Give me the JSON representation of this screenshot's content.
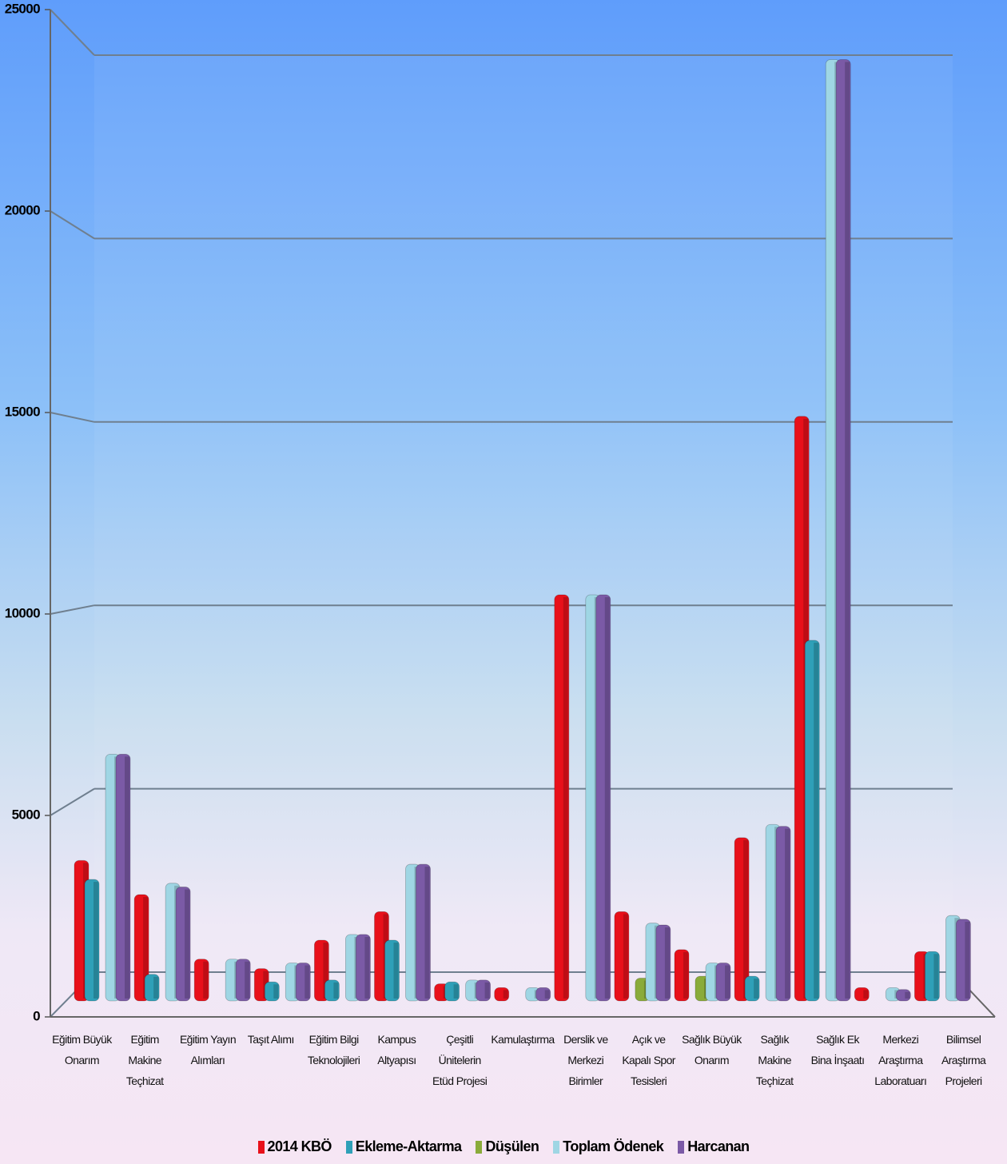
{
  "chart_data": {
    "type": "bar",
    "categories": [
      "Eğitim Büyük Onarım",
      "Eğitim Makine Teçhizat",
      "Eğitim Yayın Alımları",
      "Taşıt Alımı",
      "Eğitim Bilgi Teknolojileri",
      "Kampus Altyapısı",
      "Çeşitli Ünitelerin Etüd Projesi",
      "Kamulaştırma",
      "Derslik ve Merkezi Birimler",
      "Açık ve Kapalı Spor Tesisleri",
      "Sağlık Büyük Onarım",
      "Sağlık Makine Teçhizat",
      "Sağlık Ek Bina İnşaatı",
      "Merkezi Araştırma Laboratuarı",
      "Bilimsel Araştırma Projeleri"
    ],
    "series": [
      {
        "name": "2014 KBÖ",
        "color": "#e8101a",
        "values": [
          3700,
          2800,
          1100,
          850,
          1600,
          2350,
          450,
          350,
          10700,
          2350,
          1350,
          4300,
          15400,
          350,
          1300
        ]
      },
      {
        "name": "Ekleme-Aktarma",
        "color": "#2fa0b8",
        "values": [
          3200,
          700,
          null,
          500,
          550,
          1600,
          500,
          null,
          null,
          null,
          null,
          650,
          9500,
          null,
          1300
        ]
      },
      {
        "name": "Düşülen",
        "color": "#8aab3a",
        "values": [
          null,
          null,
          null,
          null,
          null,
          null,
          null,
          null,
          null,
          600,
          650,
          null,
          null,
          null,
          null
        ]
      },
      {
        "name": "Toplam Ödenek",
        "color": "#9fd6e4",
        "values": [
          6500,
          3100,
          1100,
          1000,
          1750,
          3600,
          550,
          350,
          10700,
          2050,
          1000,
          4650,
          24800,
          350,
          2250
        ]
      },
      {
        "name": "Harcanan",
        "color": "#7b5aa6",
        "values": [
          6500,
          3000,
          1100,
          1000,
          1750,
          3600,
          550,
          350,
          10700,
          2000,
          1000,
          4600,
          24800,
          300,
          2150
        ]
      }
    ],
    "ylim": [
      0,
      25000
    ],
    "yticks": [
      0,
      5000,
      10000,
      15000,
      20000,
      25000
    ],
    "grid": true
  }
}
